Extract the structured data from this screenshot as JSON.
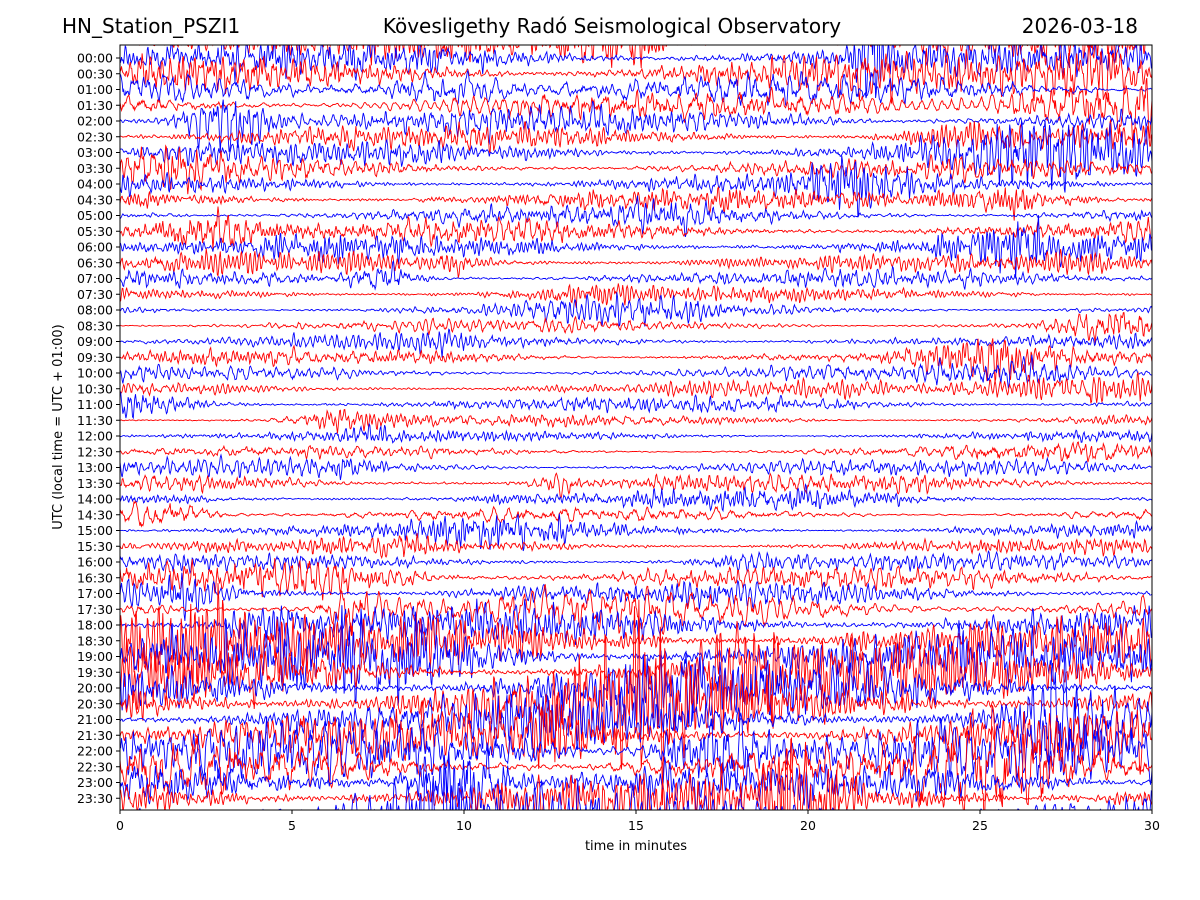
{
  "header": {
    "station": "HN_Station_PSZI1",
    "observatory": "Kövesligethy Radó Seismological Observatory",
    "date": "2026-03-18"
  },
  "chart_data": {
    "type": "line",
    "title": "Kövesligethy Radó Seismological Observatory",
    "xlabel": "time in minutes",
    "ylabel": "UTC (local time = UTC + 01:00)",
    "xlim": [
      0,
      30
    ],
    "x_ticks": [
      "0",
      "5",
      "10",
      "15",
      "20",
      "25",
      "30"
    ],
    "y_ticks": [
      "00:00",
      "00:30",
      "01:00",
      "01:30",
      "02:00",
      "02:30",
      "03:00",
      "03:30",
      "04:00",
      "04:30",
      "05:00",
      "05:30",
      "06:00",
      "06:30",
      "07:00",
      "07:30",
      "08:00",
      "08:30",
      "09:00",
      "09:30",
      "10:00",
      "10:30",
      "11:00",
      "11:30",
      "12:00",
      "12:30",
      "13:00",
      "13:30",
      "14:00",
      "14:30",
      "15:00",
      "15:30",
      "16:00",
      "16:30",
      "17:00",
      "17:30",
      "18:00",
      "18:30",
      "19:00",
      "19:30",
      "20:00",
      "20:30",
      "21:00",
      "21:30",
      "22:00",
      "22:30",
      "23:00",
      "23:30"
    ],
    "trace_colors": [
      "#0000ff",
      "#ff0000"
    ],
    "trace_amplitude_by_row": [
      1.6,
      1.6,
      1.4,
      1.3,
      1.2,
      1.1,
      1.0,
      0.9,
      0.8,
      0.8,
      0.8,
      0.9,
      0.9,
      0.8,
      0.7,
      0.6,
      0.5,
      0.6,
      0.6,
      0.6,
      0.6,
      0.6,
      0.6,
      0.5,
      0.5,
      0.5,
      0.6,
      0.7,
      0.7,
      0.7,
      0.6,
      0.6,
      0.7,
      0.9,
      1.2,
      1.4,
      1.6,
      1.8,
      2.0,
      2.2,
      2.3,
      2.3,
      2.3,
      2.3,
      2.2,
      2.1,
      2.0,
      2.0
    ],
    "grid": false
  }
}
